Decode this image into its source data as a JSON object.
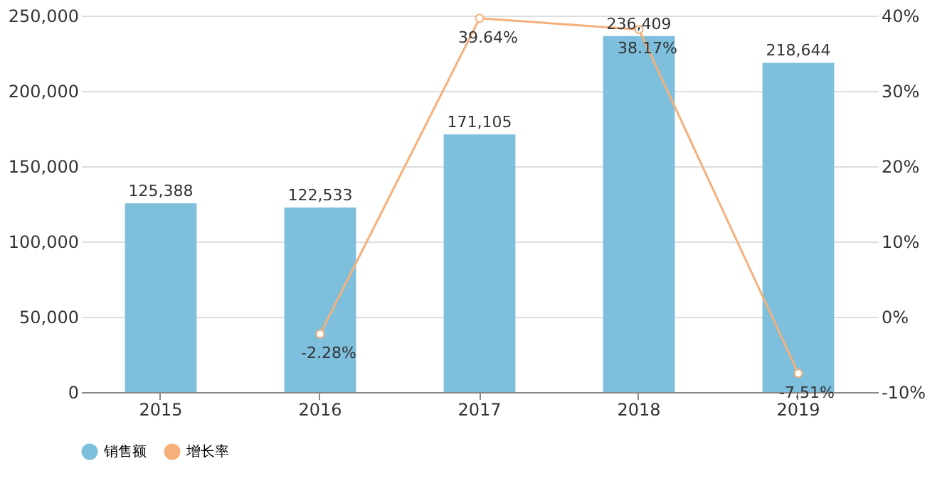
{
  "chart_data": {
    "type": "bar",
    "categories": [
      "2015",
      "2016",
      "2017",
      "2018",
      "2019"
    ],
    "series": [
      {
        "name": "销售额",
        "color": "#7dbfdc",
        "values": [
          125388,
          122533,
          171105,
          236409,
          218644
        ],
        "value_labels": [
          "125,388",
          "122,533",
          "171,105",
          "236,409",
          "218,644"
        ]
      },
      {
        "name": "增长率",
        "type": "line",
        "axis": "y2",
        "color": "#f5b07a",
        "values": [
          null,
          -2.28,
          39.64,
          38.17,
          -7.51
        ],
        "value_labels": [
          null,
          "-2.28%",
          "39.64%",
          "38.17%",
          "-7.51%"
        ],
        "marker": "circle"
      }
    ],
    "ylim": [
      0,
      250000
    ],
    "yticks": [
      0,
      {
        "value": 50000,
        "label": "50,000"
      },
      {
        "value": 100000,
        "label": "100,000"
      },
      {
        "value": 150000,
        "label": "150,000"
      },
      {
        "value": 200000,
        "label": "200,000"
      },
      {
        "value": 250000,
        "label": "250,000"
      }
    ],
    "y2lim": [
      -10,
      40
    ],
    "y2ticks": [
      {
        "value": -10,
        "label": "-10%"
      },
      {
        "value": 0,
        "label": "0%"
      },
      {
        "value": 10,
        "label": "10%"
      },
      {
        "value": 20,
        "label": "20%"
      },
      {
        "value": 30,
        "label": "30%"
      },
      {
        "value": 40,
        "label": "40%"
      }
    ],
    "grid": "y",
    "legend": "bottom"
  }
}
